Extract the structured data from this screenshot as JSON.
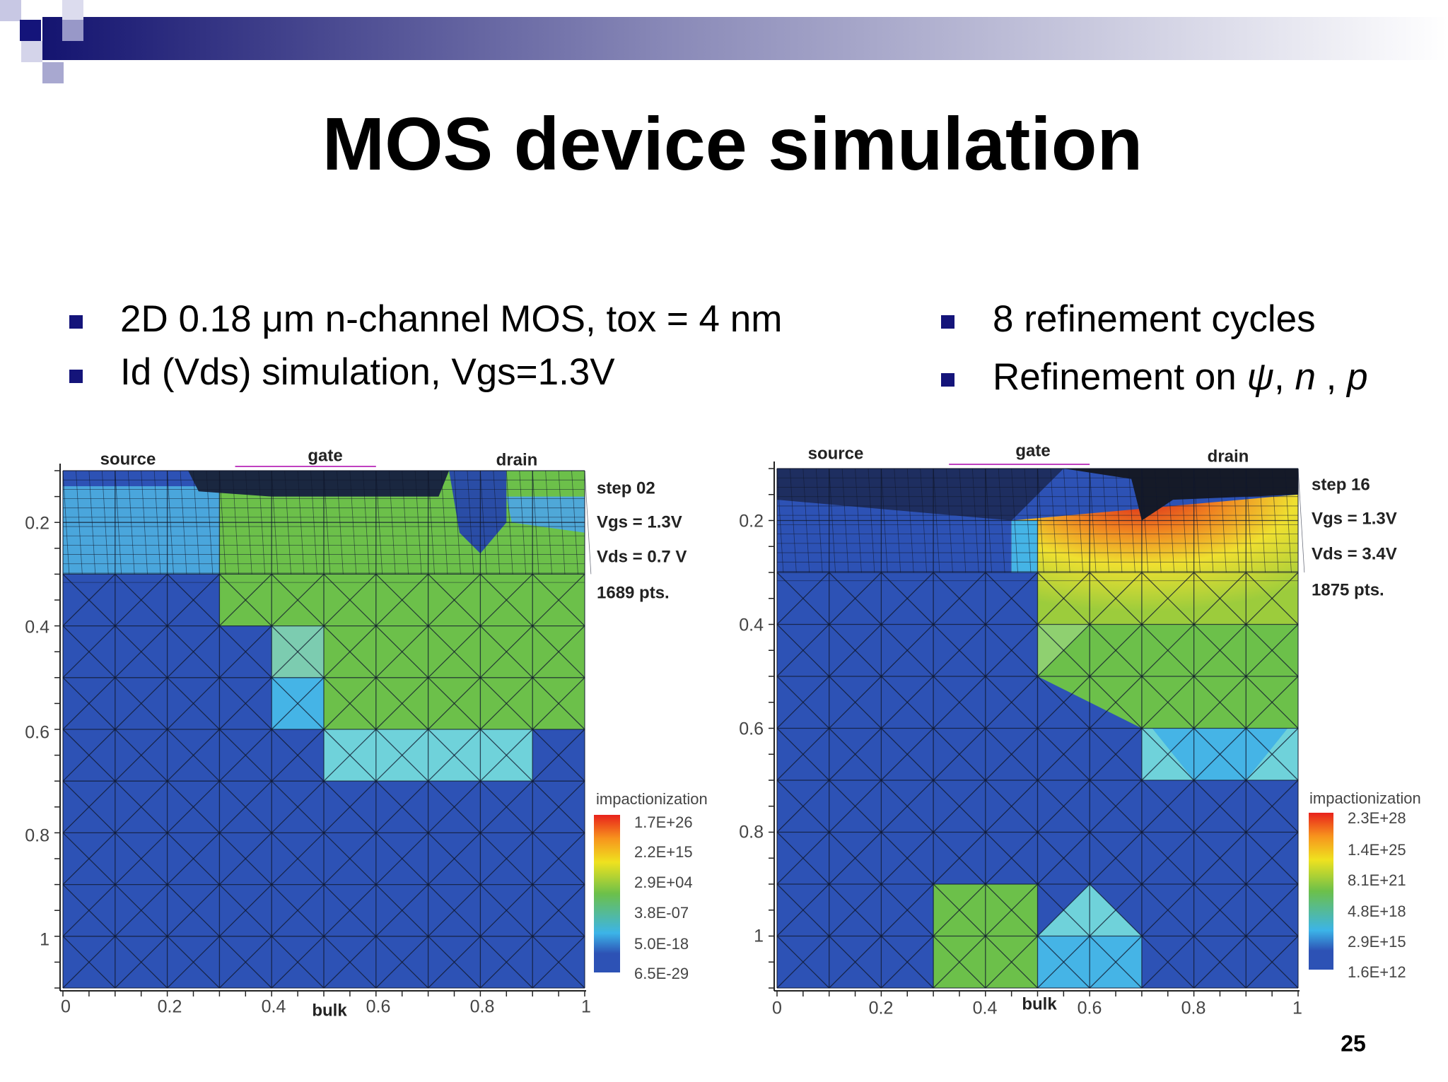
{
  "header": {
    "title": "MOS device simulation"
  },
  "bullets_left": [
    "2D 0.18 μm n-channel MOS, tox = 4 nm",
    "Id (Vds) simulation, Vgs=1.3V"
  ],
  "bullets_right": [
    "8 refinement cycles",
    [
      "Refinement on ",
      "ψ",
      ", ",
      "n",
      " , ",
      "p"
    ]
  ],
  "figures": [
    {
      "labels": {
        "source": "source",
        "gate": "gate",
        "drain": "drain"
      },
      "info": [
        "step 02",
        "Vgs = 1.3V",
        "Vds = 0.7 V",
        "1689 pts."
      ],
      "legend_title": "impactionization",
      "legend_labels": [
        "1.7E+26",
        "2.2E+15",
        "2.9E+04",
        "3.8E-07",
        "5.0E-18",
        "6.5E-29"
      ],
      "y_ticks": [
        "0.2",
        "0.4",
        "0.6",
        "0.8",
        "1"
      ],
      "x_ticks": [
        "0",
        "0.2",
        "0.4",
        "0.6",
        "0.8",
        "1"
      ],
      "x_label": "bulk"
    },
    {
      "labels": {
        "source": "source",
        "gate": "gate",
        "drain": "drain"
      },
      "info": [
        "step 16",
        "Vgs = 1.3V",
        "Vds = 3.4V",
        "1875 pts."
      ],
      "legend_title": "impactionization",
      "legend_labels": [
        "2.3E+28",
        "1.4E+25",
        "8.1E+21",
        "4.8E+18",
        "2.9E+15",
        "1.6E+12"
      ],
      "y_ticks": [
        "0.2",
        "0.4",
        "0.6",
        "0.8",
        "1"
      ],
      "x_ticks": [
        "0",
        "0.2",
        "0.4",
        "0.6",
        "0.8",
        "1"
      ],
      "x_label": "bulk"
    }
  ],
  "page_number": "25"
}
